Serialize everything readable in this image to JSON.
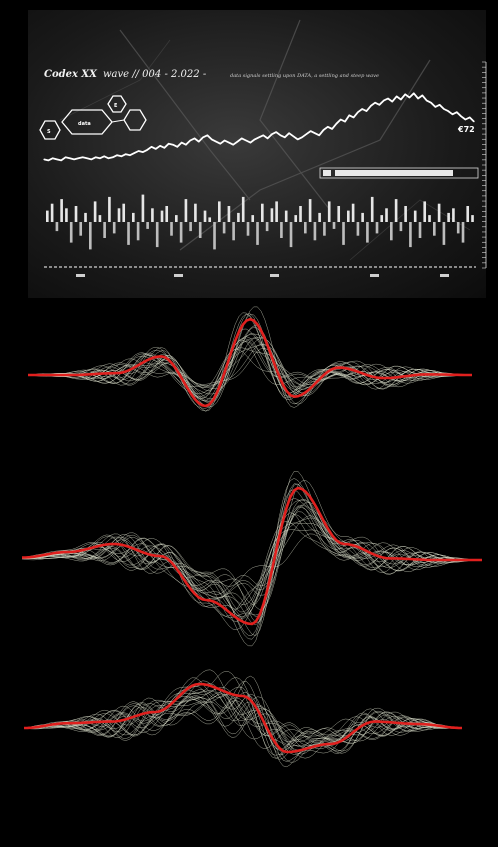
{
  "colors": {
    "background": "#000000",
    "panel": "#151515",
    "line": "#ffffff",
    "accent": "#e0201e",
    "mesh": "#d8dcc8"
  },
  "header": {
    "title": "Codex XX",
    "title_tail": "wave // 004 - 2.022 -",
    "subtitle": "data signals settling upon DATA, a settling and steep wave",
    "hex_label": "data",
    "hex_icon_a": "S",
    "hex_icon_b": "E",
    "end_label": "€72"
  },
  "chart_data": [
    {
      "type": "line",
      "panel": "top-left",
      "values": [
        32,
        31,
        33,
        32,
        31,
        34,
        33,
        32,
        33,
        34,
        33,
        32,
        34,
        33,
        35,
        33,
        34,
        36,
        35,
        37,
        36,
        38,
        40,
        39,
        41,
        44,
        42,
        45,
        43,
        47,
        46,
        44,
        48,
        46,
        50,
        52,
        49,
        53,
        55,
        51,
        49,
        47,
        50,
        48,
        46,
        49,
        52,
        50,
        48,
        51,
        53,
        55,
        52,
        56,
        58,
        55,
        53,
        57,
        54,
        51,
        53,
        56,
        59,
        57,
        55,
        60,
        63,
        61,
        66,
        70,
        68,
        74,
        72,
        77,
        80,
        78,
        83,
        86,
        84,
        88,
        90,
        87,
        92,
        89,
        94,
        91,
        95,
        90,
        93,
        88,
        86,
        82,
        84,
        80,
        78,
        75,
        77,
        73,
        70,
        72,
        68
      ],
      "ylim": [
        20,
        100
      ]
    },
    {
      "type": "bar",
      "panel": "top-left",
      "values": [
        5,
        8,
        -4,
        10,
        6,
        -9,
        7,
        -6,
        4,
        -12,
        9,
        3,
        -7,
        11,
        -5,
        6,
        8,
        -10,
        4,
        -8,
        12,
        -3,
        6,
        -11,
        5,
        7,
        -6,
        3,
        -9,
        10,
        -4,
        8,
        -7,
        5,
        2,
        -12,
        9,
        -5,
        7,
        -8,
        4,
        11,
        -6,
        3,
        -10,
        8,
        -4,
        6,
        9,
        -7,
        5,
        -11,
        3,
        7,
        -5,
        10,
        -8,
        4,
        -6,
        9,
        -3,
        7,
        -10,
        5,
        8,
        -6,
        4,
        -9,
        11,
        -5,
        3,
        6,
        -8,
        10,
        -4,
        7,
        -11,
        5,
        -7,
        9,
        3,
        -6,
        8,
        -10,
        4,
        6,
        -5,
        -9,
        7,
        3
      ],
      "ylim": [
        -14,
        14
      ]
    },
    {
      "type": "line",
      "panel": "wave-1",
      "x": [
        0,
        0.1,
        0.2,
        0.3,
        0.4,
        0.5,
        0.6,
        0.7,
        0.8,
        0.9,
        1.0
      ],
      "values": [
        0,
        0,
        0.03,
        0.3,
        -0.5,
        0.9,
        -0.35,
        0.12,
        -0.05,
        0.01,
        0
      ],
      "ylim": [
        -1,
        1
      ]
    },
    {
      "type": "line",
      "panel": "wave-2",
      "x": [
        0,
        0.1,
        0.2,
        0.3,
        0.4,
        0.5,
        0.6,
        0.7,
        0.8,
        0.9,
        1.0
      ],
      "values": [
        0.03,
        0.1,
        0.2,
        0.05,
        -0.5,
        -0.8,
        0.9,
        0.2,
        0.02,
        0,
        0
      ],
      "ylim": [
        -1,
        1
      ]
    },
    {
      "type": "line",
      "panel": "wave-3",
      "x": [
        0,
        0.1,
        0.2,
        0.3,
        0.4,
        0.5,
        0.6,
        0.7,
        0.8,
        0.9,
        1.0
      ],
      "values": [
        0,
        0.06,
        0.08,
        0.2,
        0.55,
        0.4,
        -0.3,
        -0.2,
        0.08,
        0.05,
        0
      ],
      "ylim": [
        -1,
        1
      ]
    }
  ]
}
